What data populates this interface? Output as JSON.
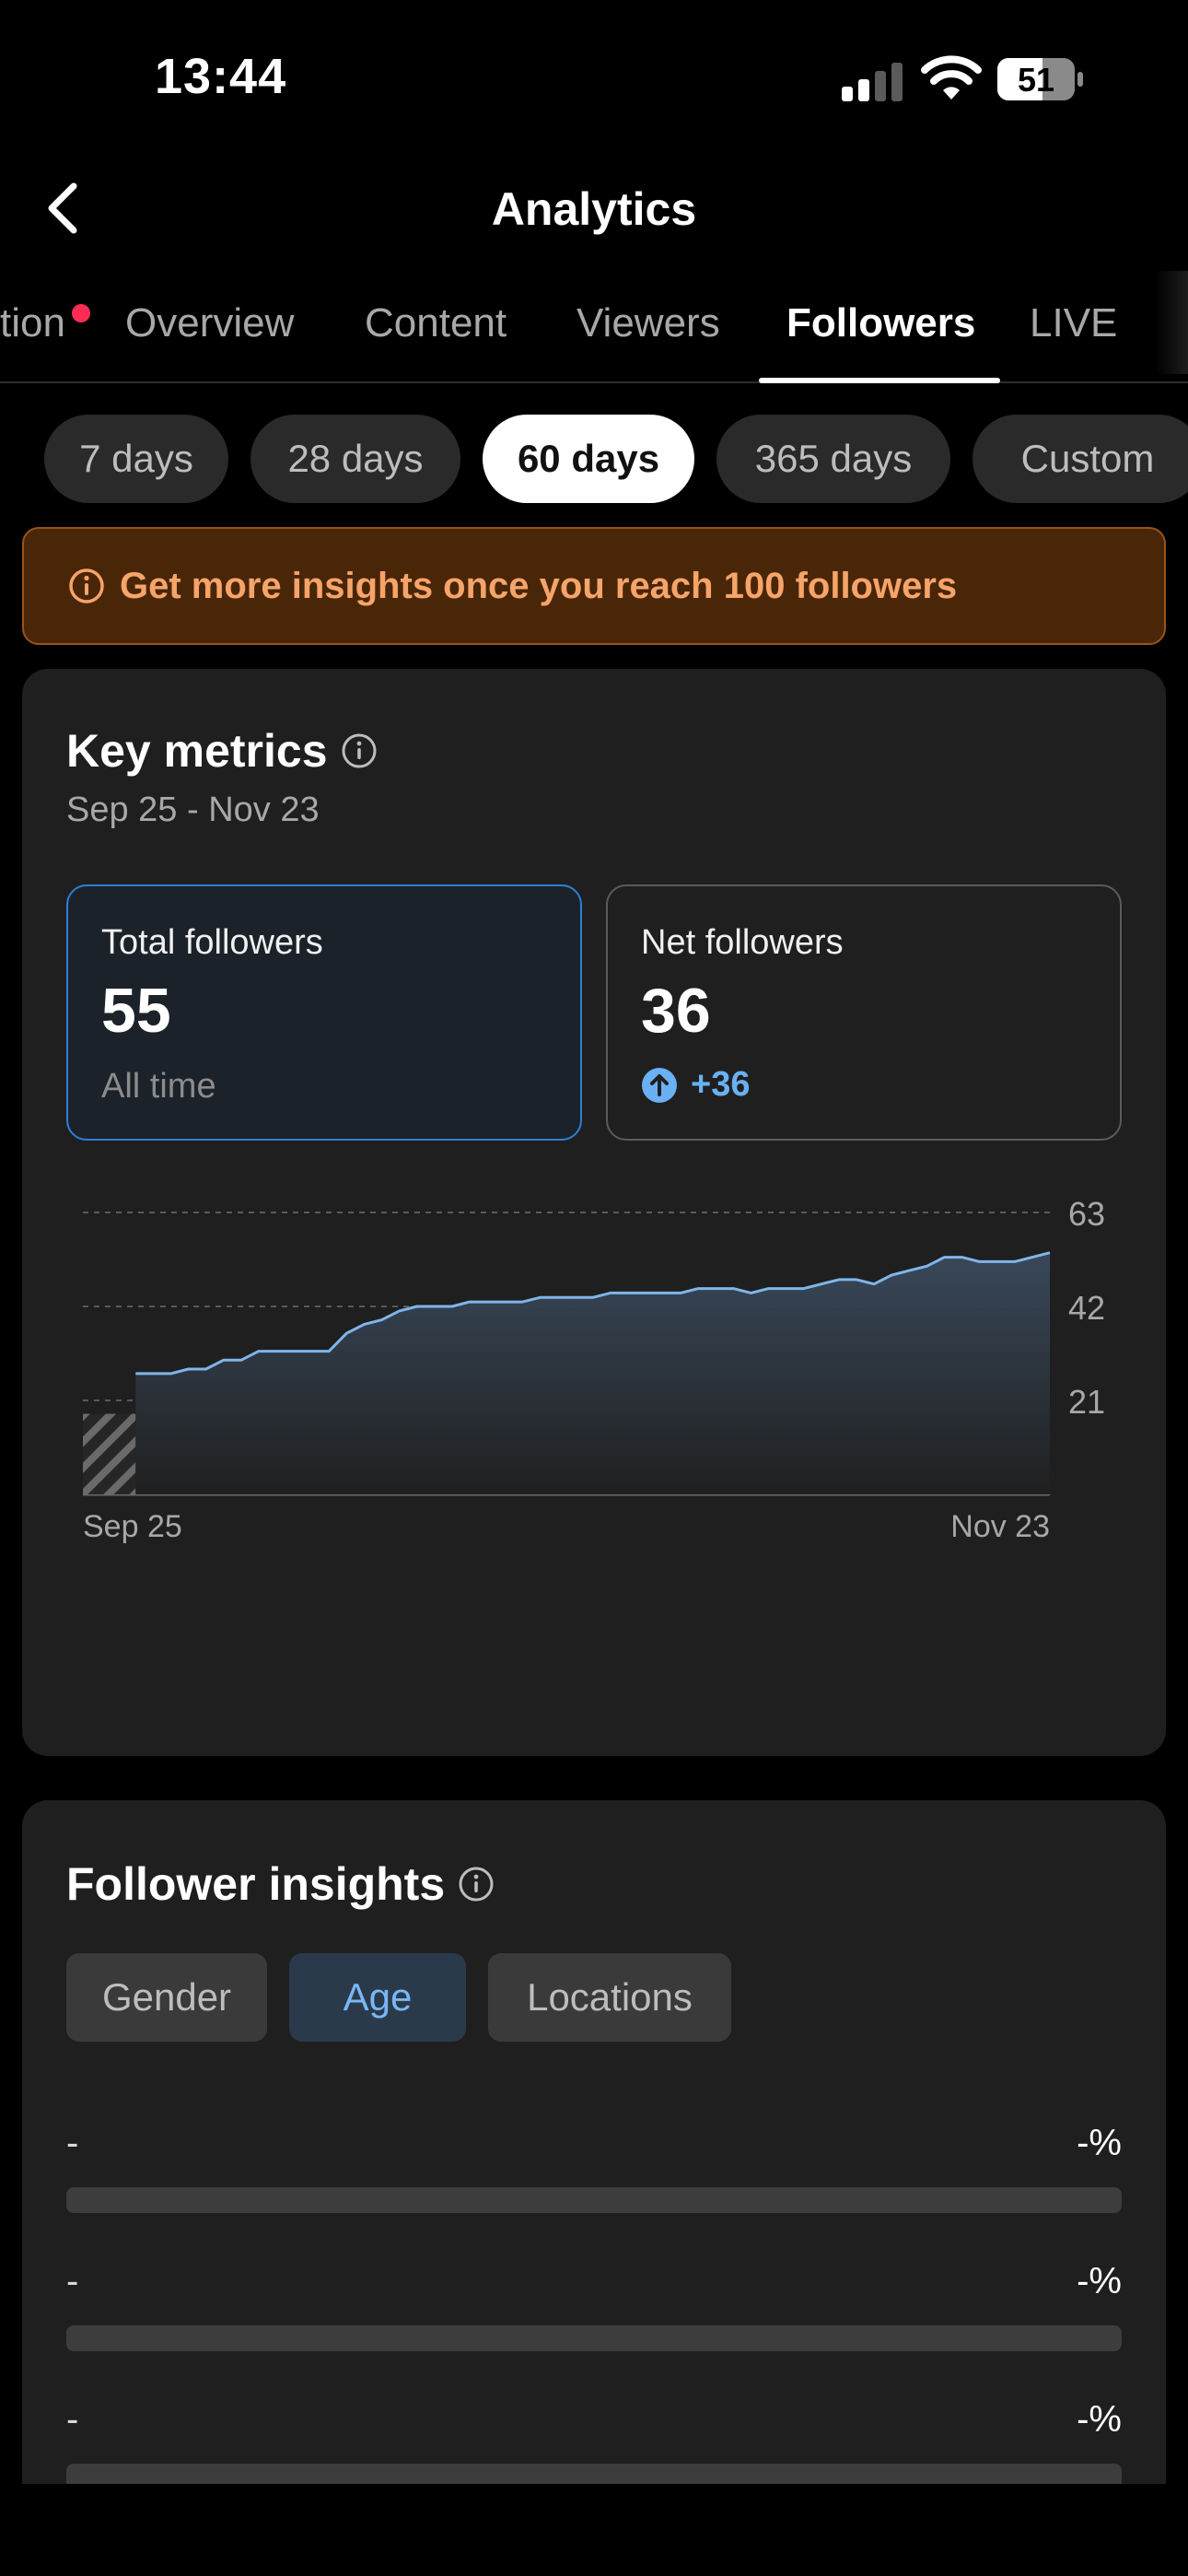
{
  "status_bar": {
    "time": "13:44",
    "battery": "51"
  },
  "header": {
    "title": "Analytics"
  },
  "tabs": [
    {
      "label": "tion",
      "has_dot": true
    },
    {
      "label": "Overview"
    },
    {
      "label": "Content"
    },
    {
      "label": "Viewers"
    },
    {
      "label": "Followers",
      "active": true
    },
    {
      "label": "LIVE"
    }
  ],
  "ranges": [
    {
      "label": "7 days"
    },
    {
      "label": "28 days"
    },
    {
      "label": "60 days",
      "active": true
    },
    {
      "label": "365 days"
    },
    {
      "label": "Custom"
    }
  ],
  "banner": {
    "text": "Get more insights once you reach 100 followers",
    "color": "#f6a469"
  },
  "key_metrics": {
    "title": "Key metrics",
    "date_range": "Sep 25 - Nov 23",
    "total": {
      "label": "Total followers",
      "value": "55",
      "sub": "All time"
    },
    "net": {
      "label": "Net followers",
      "value": "36",
      "delta": "+36"
    }
  },
  "chart_data": {
    "type": "area",
    "x_start_label": "Sep 25",
    "x_end_label": "Nov 23",
    "y_ticks": [
      "63",
      "42",
      "21"
    ],
    "ylim": [
      0,
      63
    ],
    "grid": true,
    "hatched_period_days": 3,
    "line_color": "#7fb5ea",
    "values": [
      18,
      21,
      24,
      27,
      27,
      27,
      28,
      28,
      30,
      30,
      32,
      32,
      32,
      32,
      32,
      36,
      38,
      39,
      41,
      42,
      42,
      42,
      43,
      43,
      43,
      43,
      44,
      44,
      44,
      44,
      45,
      45,
      45,
      45,
      45,
      46,
      46,
      46,
      45,
      46,
      46,
      46,
      47,
      48,
      48,
      47,
      49,
      50,
      51,
      53,
      53,
      52,
      52,
      52,
      53,
      54
    ]
  },
  "insights": {
    "title": "Follower insights",
    "segments": [
      {
        "label": "Gender"
      },
      {
        "label": "Age",
        "active": true
      },
      {
        "label": "Locations"
      }
    ],
    "rows": [
      {
        "label": "-",
        "pct": "-%"
      },
      {
        "label": "-",
        "pct": "-%"
      },
      {
        "label": "-",
        "pct": "-%"
      }
    ]
  }
}
